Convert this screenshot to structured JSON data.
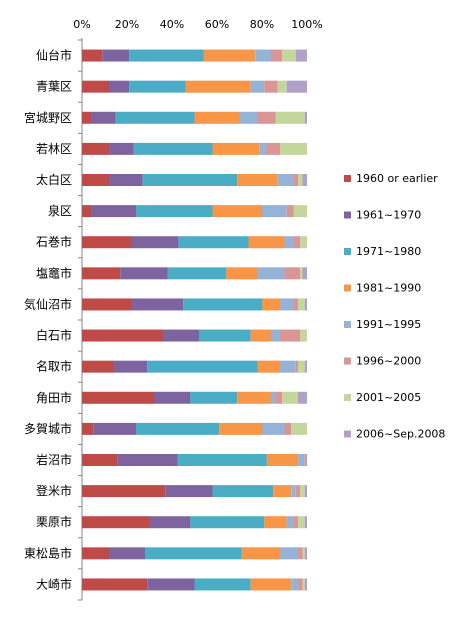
{
  "chart_data": {
    "type": "bar",
    "orientation": "horizontal",
    "stacked": "percent",
    "title": "",
    "xlabel": "",
    "ylabel": "",
    "xlim": [
      0,
      100
    ],
    "x_ticks": [
      "0%",
      "20%",
      "40%",
      "60%",
      "80%",
      "100%"
    ],
    "grid": false,
    "legend_position": "right",
    "categories": [
      "仙台市",
      "青葉区",
      "宮城野区",
      "若林区",
      "太白区",
      "泉区",
      "石巻市",
      "塩竈市",
      "気仙沼市",
      "白石市",
      "名取市",
      "角田市",
      "多賀城市",
      "岩沼市",
      "登米市",
      "栗原市",
      "東松島市",
      "大崎市"
    ],
    "series": [
      {
        "name": "1960 or earlier",
        "color": "#BE4B48",
        "values": [
          9,
          12,
          4,
          12,
          12,
          4,
          22,
          17,
          22,
          36,
          14,
          32,
          5,
          16,
          37,
          30,
          12,
          29
        ]
      },
      {
        "name": "1961~1970",
        "color": "#7E649E",
        "values": [
          12,
          9,
          11,
          11,
          15,
          20,
          21,
          21,
          23,
          16,
          15,
          16,
          19,
          27,
          21,
          18,
          16,
          21
        ]
      },
      {
        "name": "1971~1980",
        "color": "#4BACC6",
        "values": [
          33,
          25,
          35,
          35,
          42,
          34,
          31,
          26,
          35,
          23,
          49,
          21,
          37,
          40,
          27,
          33,
          43,
          25
        ]
      },
      {
        "name": "1981~1990",
        "color": "#F79646",
        "values": [
          23,
          29,
          20,
          21,
          18,
          22,
          16,
          14,
          8,
          9,
          10,
          15,
          19,
          14,
          8,
          10,
          17,
          18
        ]
      },
      {
        "name": "1991~1995",
        "color": "#95B3D7",
        "values": [
          7,
          6,
          8,
          3,
          7,
          11,
          4,
          12,
          6,
          4,
          7,
          2,
          10,
          3,
          2,
          3,
          8,
          3
        ]
      },
      {
        "name": "1996~2000",
        "color": "#DA9694",
        "values": [
          5,
          6,
          8,
          6,
          2,
          3,
          3,
          7,
          2,
          9,
          1,
          3,
          3,
          1,
          2,
          2,
          2,
          2
        ]
      },
      {
        "name": "2001~2005",
        "color": "#C3D69B",
        "values": [
          6,
          4,
          13,
          12,
          2,
          6,
          3,
          1,
          3,
          3,
          3,
          7,
          7,
          0,
          2,
          3,
          1,
          1
        ]
      },
      {
        "name": "2006~Sep.2008",
        "color": "#B1A0C7",
        "values": [
          5,
          9,
          1,
          0,
          2,
          0,
          0,
          2,
          1,
          0,
          1,
          4,
          0,
          0,
          1,
          1,
          1,
          1
        ]
      }
    ]
  }
}
